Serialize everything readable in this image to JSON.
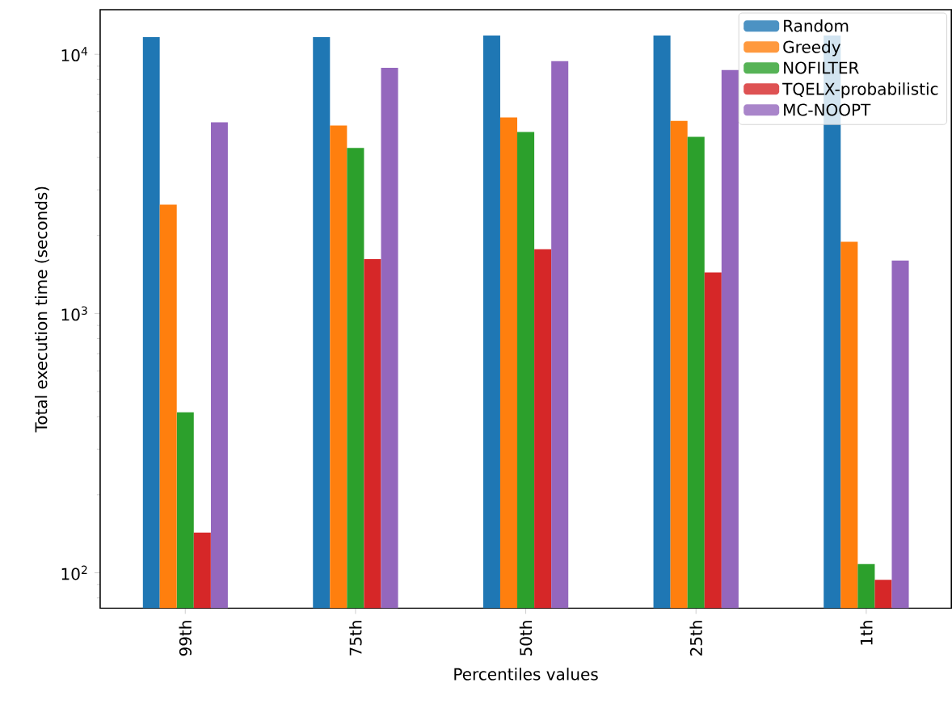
{
  "chart_data": {
    "type": "bar",
    "xlabel": "Percentiles values",
    "ylabel": "Total execution time (seconds)",
    "categories": [
      "99th",
      "75th",
      "50th",
      "25th",
      "1th"
    ],
    "series": [
      {
        "name": "Random",
        "color": "#1f77b4",
        "values": [
          11650,
          11650,
          11800,
          11800,
          11800
        ]
      },
      {
        "name": "Greedy",
        "color": "#ff7f0e",
        "values": [
          2630,
          5310,
          5700,
          5530,
          1890
        ]
      },
      {
        "name": "NOFILTER",
        "color": "#2ca02c",
        "values": [
          416,
          4350,
          5010,
          4800,
          108
        ]
      },
      {
        "name": "TQELX-probabilistic",
        "color": "#d62728",
        "values": [
          143,
          1620,
          1770,
          1440,
          94
        ]
      },
      {
        "name": "MC-NOOPT",
        "color": "#9467bd",
        "values": [
          5460,
          8870,
          9400,
          8700,
          1600
        ]
      }
    ],
    "log": "y",
    "ylim": [
      73,
      14860
    ],
    "yticks": [
      {
        "value": 80,
        "label": null
      },
      {
        "value": 90,
        "label": null
      },
      {
        "value": 100,
        "label": "10$^{2}$"
      },
      {
        "value": 200,
        "label": null
      },
      {
        "value": 300,
        "label": null
      },
      {
        "value": 400,
        "label": null
      },
      {
        "value": 500,
        "label": null
      },
      {
        "value": 600,
        "label": null
      },
      {
        "value": 700,
        "label": null
      },
      {
        "value": 800,
        "label": null
      },
      {
        "value": 900,
        "label": null
      },
      {
        "value": 1000,
        "label": "10$^{3}$"
      },
      {
        "value": 2000,
        "label": null
      },
      {
        "value": 3000,
        "label": null
      },
      {
        "value": 4000,
        "label": null
      },
      {
        "value": 5000,
        "label": null
      },
      {
        "value": 6000,
        "label": null
      },
      {
        "value": 7000,
        "label": null
      },
      {
        "value": 8000,
        "label": null
      },
      {
        "value": 9000,
        "label": null
      },
      {
        "value": 10000,
        "label": "10$^{4}$"
      }
    ],
    "legend": "top right",
    "grid": false
  }
}
